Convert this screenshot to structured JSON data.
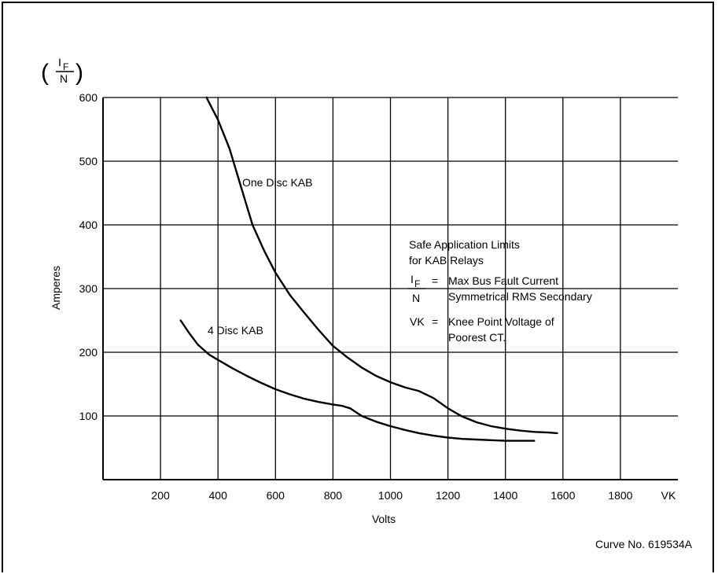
{
  "chart_data": {
    "type": "line",
    "title": "",
    "ylabel_fraction": {
      "numerator": "I",
      "numerator_sub": "F",
      "denominator": "N"
    },
    "ylabel": "Amperes",
    "xlabel": "Volts",
    "x_axis_end_label": "VK",
    "xlim": [
      0,
      2000
    ],
    "ylim": [
      0,
      600
    ],
    "x_ticks": [
      200,
      400,
      600,
      800,
      1000,
      1200,
      1400,
      1600,
      1800
    ],
    "y_ticks": [
      100,
      200,
      300,
      400,
      500,
      600
    ],
    "grid": true,
    "series": [
      {
        "name": "One Disc KAB",
        "points": [
          [
            360,
            600
          ],
          [
            400,
            565
          ],
          [
            440,
            520
          ],
          [
            480,
            460
          ],
          [
            520,
            400
          ],
          [
            560,
            360
          ],
          [
            600,
            325
          ],
          [
            650,
            290
          ],
          [
            700,
            262
          ],
          [
            750,
            235
          ],
          [
            800,
            210
          ],
          [
            850,
            192
          ],
          [
            900,
            176
          ],
          [
            950,
            163
          ],
          [
            1000,
            153
          ],
          [
            1050,
            145
          ],
          [
            1100,
            139
          ],
          [
            1150,
            128
          ],
          [
            1200,
            112
          ],
          [
            1250,
            99
          ],
          [
            1300,
            90
          ],
          [
            1350,
            84
          ],
          [
            1400,
            80
          ],
          [
            1450,
            77
          ],
          [
            1500,
            75
          ],
          [
            1550,
            74
          ],
          [
            1580,
            73
          ]
        ]
      },
      {
        "name": "4 Disc KAB",
        "points": [
          [
            270,
            250
          ],
          [
            300,
            230
          ],
          [
            330,
            212
          ],
          [
            370,
            196
          ],
          [
            400,
            188
          ],
          [
            450,
            175
          ],
          [
            500,
            163
          ],
          [
            550,
            152
          ],
          [
            600,
            142
          ],
          [
            650,
            134
          ],
          [
            700,
            127
          ],
          [
            750,
            122
          ],
          [
            800,
            118
          ],
          [
            830,
            116
          ],
          [
            860,
            112
          ],
          [
            880,
            106
          ],
          [
            900,
            100
          ],
          [
            950,
            91
          ],
          [
            1000,
            84
          ],
          [
            1050,
            78
          ],
          [
            1100,
            73
          ],
          [
            1150,
            69
          ],
          [
            1200,
            66
          ],
          [
            1250,
            64
          ],
          [
            1300,
            63
          ],
          [
            1350,
            62
          ],
          [
            1400,
            61
          ],
          [
            1450,
            61
          ],
          [
            1500,
            61
          ]
        ]
      }
    ],
    "legend_text": {
      "line1": "Safe Application Limits",
      "line2": "for KAB Relays",
      "def1_symbol_num": "I",
      "def1_symbol_sub": "F",
      "def1_symbol_den": "N",
      "def1_eq": "=",
      "def1_text1": "Max Bus Fault Current",
      "def1_text2": "Symmetrical RMS Secondary",
      "def2_symbol": "VK",
      "def2_eq": "=",
      "def2_text1": "Knee Point Voltage of",
      "def2_text2": "Poorest CT."
    },
    "footnote": "Curve No. 619534A"
  }
}
